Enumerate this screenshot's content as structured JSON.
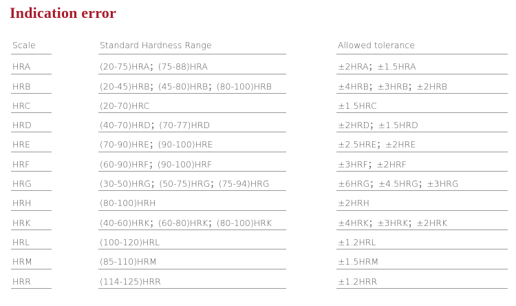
{
  "title": "Indication error",
  "headers": [
    "Scale",
    "Standard Hardness Range",
    "Allowed tolerance"
  ],
  "rows": [
    {
      "scale": "HRA",
      "range": "(20-75)HRA；(75-88)HRA",
      "tolerance": "±2HRA；±1.5HRA"
    },
    {
      "scale": "HRB",
      "range": "(20-45)HRB；(45-80)HRB；(80-100)HRB",
      "tolerance": "±4HRB；±3HRB；±2HRB"
    },
    {
      "scale": "HRC",
      "range": "(20-70)HRC",
      "tolerance": "±1.5HRC"
    },
    {
      "scale": "HRD",
      "range": "(40-70)HRD；(70-77)HRD",
      "tolerance": "±2HRD；±1.5HRD"
    },
    {
      "scale": "HRE",
      "range": "(70-90)HRE；(90-100)HRE",
      "tolerance": "±2.5HRE；±2HRE"
    },
    {
      "scale": "HRF",
      "range": "(60-90)HRF；(90-100)HRF",
      "tolerance": "±3HRF；±2HRF"
    },
    {
      "scale": "HRG",
      "range": "(30-50)HRG；(50-75)HRG；(75-94)HRG",
      "tolerance": "±6HRG；±4.5HRG；±3HRG"
    },
    {
      "scale": "HRH",
      "range": "(80-100)HRH",
      "tolerance": "±2HRH"
    },
    {
      "scale": "HRK",
      "range": "(40-60)HRK；(60-80)HRK；(80-100)HRK",
      "tolerance": "±4HRK；±3HRK；±2HRK"
    },
    {
      "scale": "HRL",
      "range": "(100-120)HRL",
      "tolerance": "±1.2HRL"
    },
    {
      "scale": "HRM",
      "range": "(85-110)HRM",
      "tolerance": "±1.5HRM"
    },
    {
      "scale": "HRR",
      "range": "(114-125)HRR",
      "tolerance": "±1.2HRR"
    }
  ]
}
